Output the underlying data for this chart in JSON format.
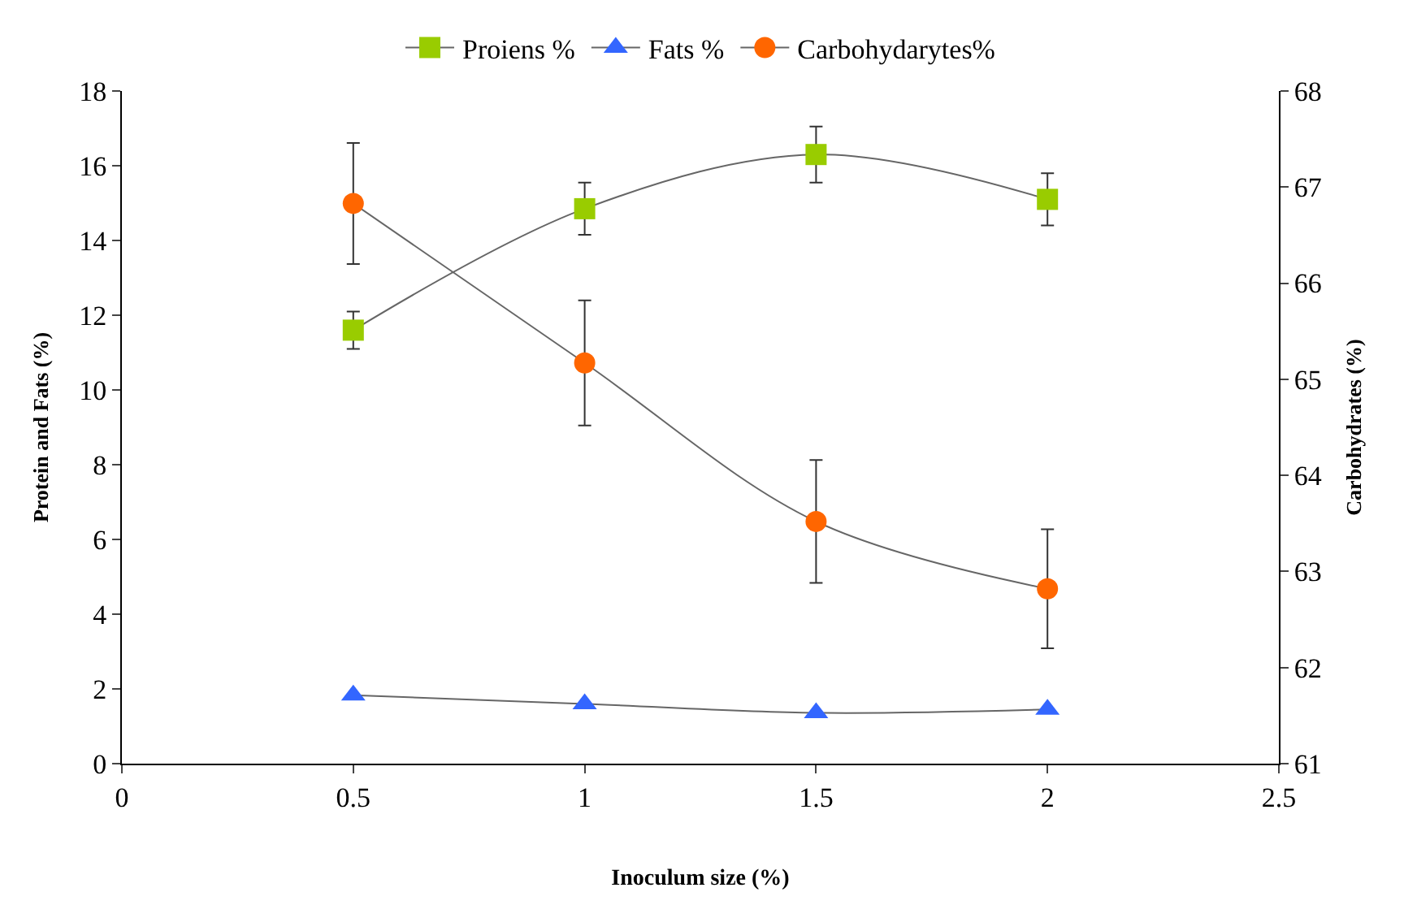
{
  "chart_data": {
    "type": "line",
    "xlabel": "Inoculum size (%)",
    "ylabel": "Protein and Fats (%)",
    "y2label": "Carbohydrates (%)",
    "x": [
      0.5,
      1,
      1.5,
      2
    ],
    "series": [
      {
        "name": "Proiens %",
        "color": "#99cc00",
        "marker": "square",
        "values": [
          11.6,
          14.85,
          16.3,
          15.1
        ],
        "errors": [
          0.5,
          0.7,
          0.75,
          0.7
        ]
      },
      {
        "name": "Fats %",
        "color": "#3366ff",
        "marker": "triangle",
        "values": [
          1.83,
          1.6,
          1.36,
          1.45
        ]
      },
      {
        "name": "Carbohydarytes%",
        "color": "#ff6600",
        "marker": "circle",
        "axis": "y2",
        "values": [
          66.83,
          65.17,
          63.52,
          62.82
        ],
        "errors": [
          0.63,
          0.65,
          0.64,
          0.62
        ]
      }
    ],
    "xlim": [
      0,
      2.5
    ],
    "xticks": [
      0,
      0.5,
      1,
      1.5,
      2,
      2.5
    ],
    "ylim": [
      0,
      18
    ],
    "yticks": [
      0,
      2,
      4,
      6,
      8,
      10,
      12,
      14,
      16,
      18
    ],
    "y2lim": [
      61,
      68
    ],
    "y2ticks": [
      61,
      62,
      63,
      64,
      65,
      66,
      67,
      68
    ],
    "legend": "top",
    "line_style": "solid"
  }
}
